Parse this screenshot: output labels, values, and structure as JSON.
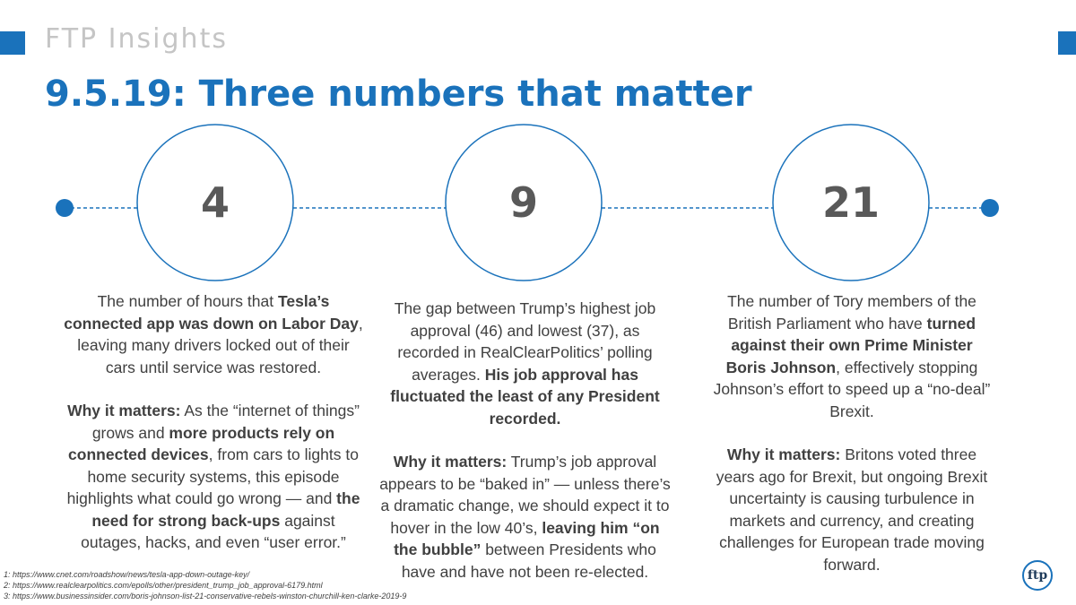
{
  "header": {
    "brand": "FTP Insights",
    "title": "9.5.19: Three numbers that matter"
  },
  "colors": {
    "accent": "#1a72bb",
    "text": "#404040",
    "muted": "#c5c5c5"
  },
  "items": [
    {
      "number": "4",
      "desc": [
        {
          "t": "The number of hours that "
        },
        {
          "t": "Tesla’s connected app was down on Labor Day",
          "b": true
        },
        {
          "t": ", leaving many drivers locked out of their cars until service was restored."
        }
      ],
      "why": [
        {
          "t": "Why it matters:",
          "b": true
        },
        {
          "t": " As the “internet of things” grows and "
        },
        {
          "t": "more products rely on connected devices",
          "b": true
        },
        {
          "t": ", from cars to lights to home security systems, this episode highlights what could go wrong — and "
        },
        {
          "t": "the need for strong back-ups",
          "b": true
        },
        {
          "t": " against outages, hacks, and even “user error.”"
        }
      ]
    },
    {
      "number": "9",
      "desc": [
        {
          "t": "The gap between Trump’s highest job approval (46) and lowest (37), as recorded in RealClearPolitics’ polling averages. "
        },
        {
          "t": "His job approval has fluctuated the least of any President recorded.",
          "b": true
        }
      ],
      "why": [
        {
          "t": "Why it matters:",
          "b": true
        },
        {
          "t": " Trump’s job approval appears to be “baked in” — unless there’s a dramatic change, we should expect it to hover in the low 40’s, "
        },
        {
          "t": "leaving him “on the bubble”",
          "b": true
        },
        {
          "t": " between Presidents who have and have not been re-elected."
        }
      ]
    },
    {
      "number": "21",
      "desc": [
        {
          "t": "The number of Tory members of the British Parliament who have "
        },
        {
          "t": "turned against their own Prime Minister Boris Johnson",
          "b": true
        },
        {
          "t": ", effectively stopping Johnson’s effort to speed up a “no-deal” Brexit."
        }
      ],
      "why": [
        {
          "t": "Why it matters:",
          "b": true
        },
        {
          "t": " Britons voted three years ago for Brexit, but ongoing Brexit uncertainty is causing turbulence in markets and currency, and creating challenges for European trade moving forward."
        }
      ]
    }
  ],
  "footnotes": [
    "1: https://www.cnet.com/roadshow/news/tesla-app-down-outage-key/",
    "2: https://www.realclearpolitics.com/epolls/other/president_trump_job_approval-6179.html",
    "3: https://www.businessinsider.com/boris-johnson-list-21-conservative-rebels-winston-churchill-ken-clarke-2019-9"
  ],
  "logo": {
    "text": "ftp"
  }
}
